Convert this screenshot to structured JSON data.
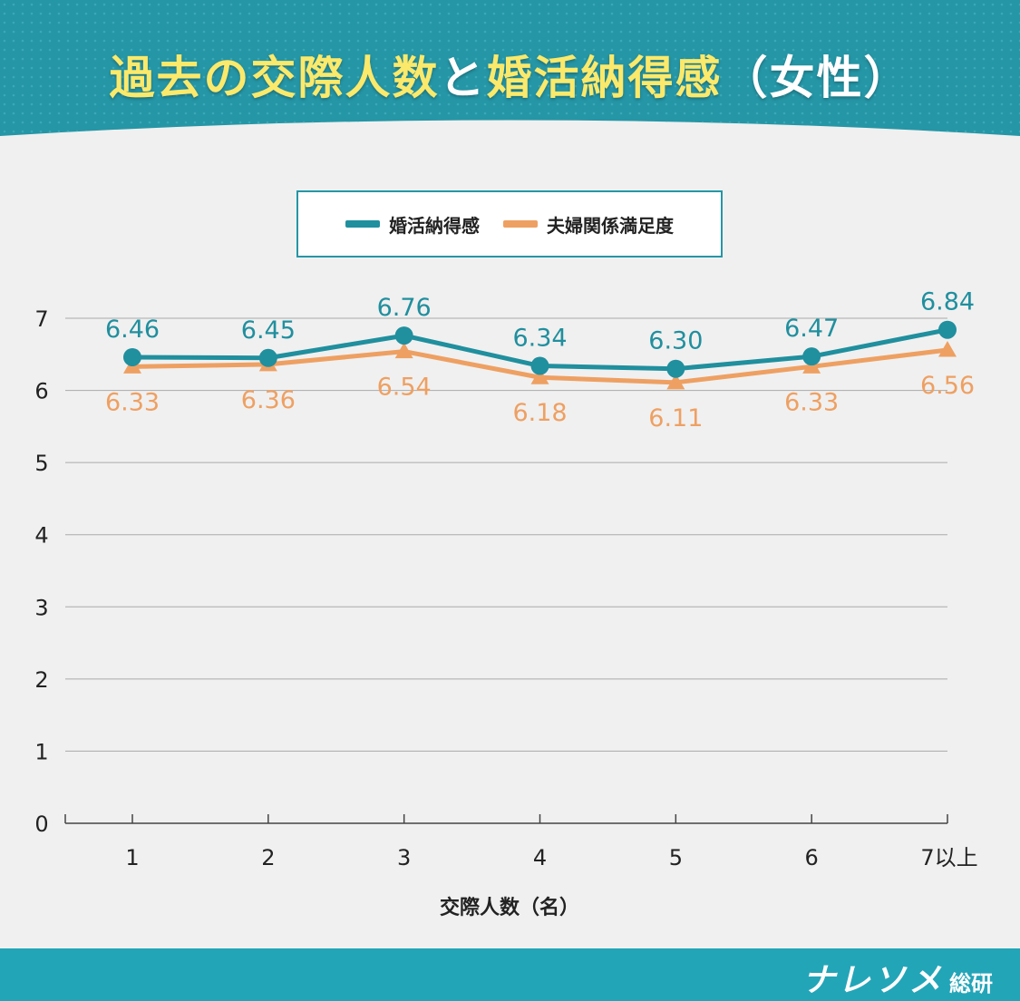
{
  "header": {
    "title_parts": [
      "過去の交際人数",
      "と",
      "婚活納得感",
      "（女性）"
    ]
  },
  "colors": {
    "header_teal": "#2596a6",
    "title_yellow": "#fbe96b",
    "series1": "#208f9e",
    "series2": "#eea062",
    "footer": "#23a5b8"
  },
  "brand": {
    "name": "ナレソメ",
    "suffix": "総研"
  },
  "chart_data": {
    "type": "line",
    "categories": [
      "1",
      "2",
      "3",
      "4",
      "5",
      "6",
      "7以上"
    ],
    "series": [
      {
        "name": "婚活納得感",
        "values": [
          6.46,
          6.45,
          6.76,
          6.34,
          6.3,
          6.47,
          6.84
        ],
        "labels": [
          "6.46",
          "6.45",
          "6.76",
          "6.34",
          "6.30",
          "6.47",
          "6.84"
        ],
        "marker": "circle",
        "color": "#208f9e"
      },
      {
        "name": "夫婦関係満足度",
        "values": [
          6.33,
          6.36,
          6.54,
          6.18,
          6.11,
          6.33,
          6.56
        ],
        "labels": [
          "6.33",
          "6.36",
          "6.54",
          "6.18",
          "6.11",
          "6.33",
          "6.56"
        ],
        "marker": "triangle",
        "color": "#eea062"
      }
    ],
    "xlabel": "交際人数（名）",
    "ylabel": "",
    "ylim": [
      0,
      7
    ],
    "yticks": [
      "0",
      "1",
      "2",
      "3",
      "4",
      "5",
      "6",
      "7"
    ],
    "grid": true,
    "legend": "top-center"
  }
}
